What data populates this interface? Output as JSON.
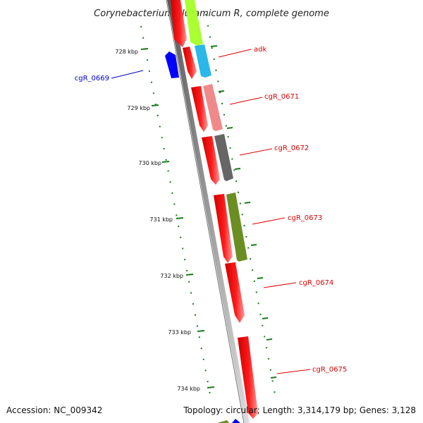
{
  "title": "Corynebacterium glutamicum R, complete genome",
  "footer": {
    "accession": "Accession: NC_009342",
    "stats": "Topology: circular; Length: 3,314,179 bp; Genes: 3,128"
  },
  "ticks": [
    {
      "label": "728 kbp"
    },
    {
      "label": "729 kbp"
    },
    {
      "label": "730 kbp"
    },
    {
      "label": "731 kbp"
    },
    {
      "label": "732 kbp"
    },
    {
      "label": "733 kbp"
    },
    {
      "label": "734 kbp"
    }
  ],
  "gene_labels": [
    {
      "name": "adk",
      "color": "#dd0000"
    },
    {
      "name": "cgR_0669",
      "color": "#0000cc"
    },
    {
      "name": "cgR_0671",
      "color": "#dd0000"
    },
    {
      "name": "cgR_0672",
      "color": "#dd0000"
    },
    {
      "name": "cgR_0673",
      "color": "#dd0000"
    },
    {
      "name": "cgR_0674",
      "color": "#dd0000"
    },
    {
      "name": "cgR_0675",
      "color": "#dd0000"
    }
  ],
  "colors": {
    "backbone": "#8a8a8a",
    "cds_forward": "#ff0000",
    "cds_reverse": "#0000ff",
    "tick_marks": "#1a7a1a",
    "cog_adk": "#29b8e8",
    "cog_prev": "#aaff33",
    "cog_0671": "#f08a8a",
    "cog_0672": "#666666",
    "cog_0673": "#6b8e23"
  }
}
